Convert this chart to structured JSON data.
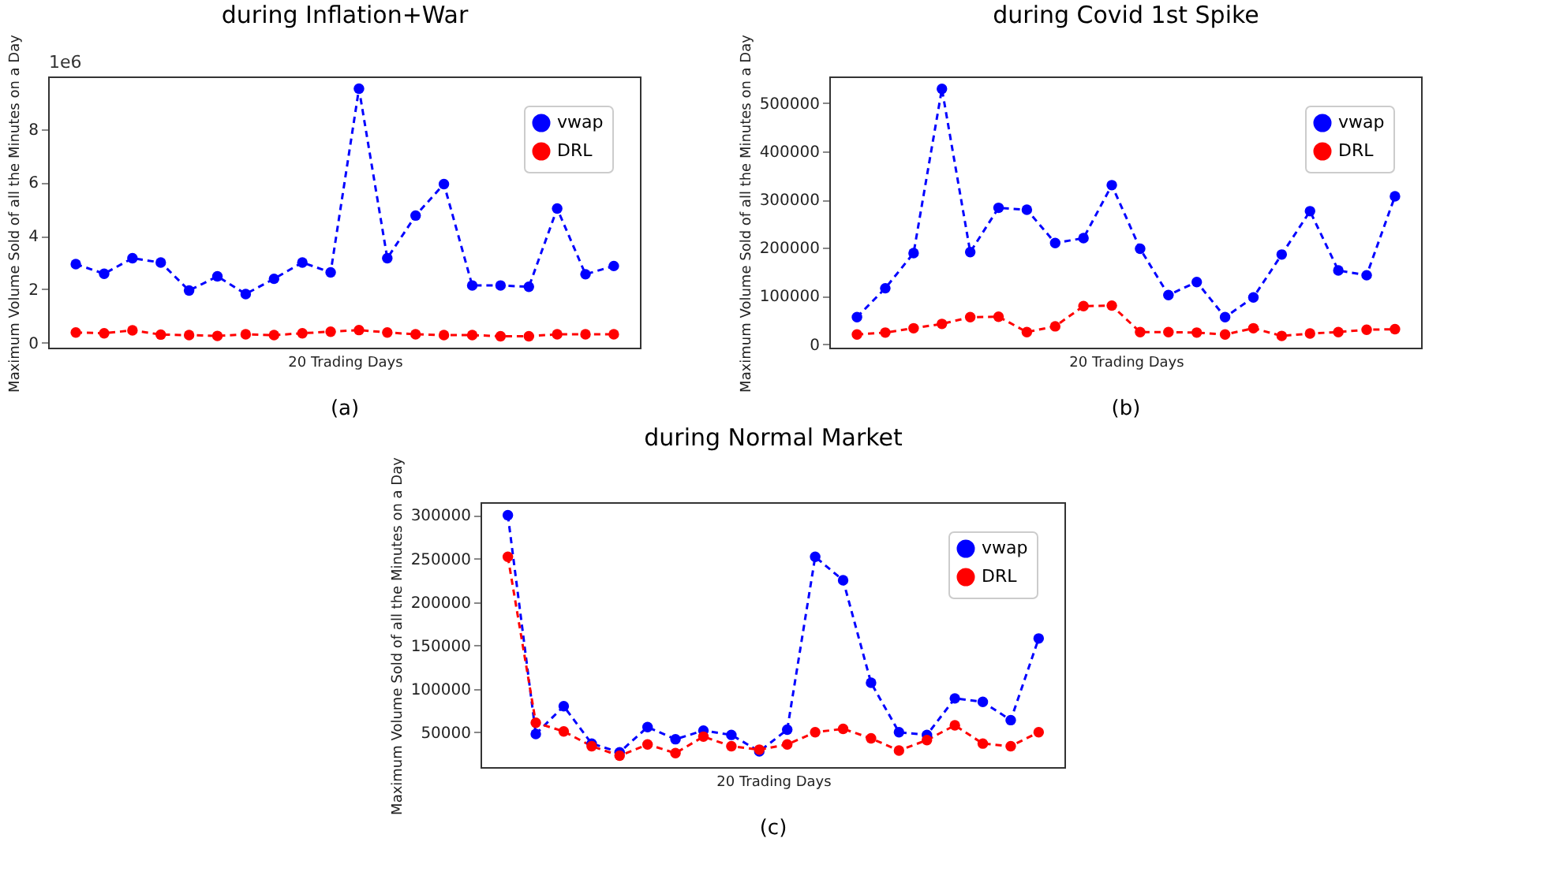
{
  "chart_data": [
    {
      "type": "line",
      "title": "during Inflation+War",
      "xlabel": "20 Trading Days",
      "ylabel": "Maximum Volume Sold of all the Minutes on a Day",
      "annotations": [
        "1e6",
        "(a)"
      ],
      "categories": [
        null,
        null,
        null,
        null,
        null,
        null,
        null,
        null,
        null,
        null,
        null,
        null,
        null,
        null,
        null,
        null,
        null,
        null,
        null,
        null
      ],
      "series": [
        {
          "name": "vwap",
          "color": "#0000ff",
          "values": [
            2.94,
            2.58,
            3.16,
            3.0,
            1.95,
            2.48,
            1.82,
            2.39,
            3.0,
            2.63,
            9.51,
            3.16,
            4.76,
            5.94,
            2.14,
            2.14,
            2.09,
            5.02,
            2.56,
            2.87
          ]
        },
        {
          "name": "DRL",
          "color": "#ff0000",
          "values": [
            0.38,
            0.35,
            0.46,
            0.3,
            0.28,
            0.25,
            0.31,
            0.28,
            0.35,
            0.41,
            0.47,
            0.38,
            0.31,
            0.28,
            0.28,
            0.24,
            0.24,
            0.31,
            0.31,
            0.31
          ]
        }
      ],
      "ylim": [
        -0.22,
        9.94
      ],
      "yticks": [
        0,
        2,
        4,
        6,
        8
      ],
      "tick_labels": "y",
      "grid": false,
      "legend": "top right",
      "marker": "circle",
      "line_style": "dashed"
    },
    {
      "type": "line",
      "title": "during Covid 1st Spike",
      "xlabel": "20 Trading Days",
      "ylabel": "Maximum Volume Sold of all the Minutes on a Day",
      "annotations": [
        "(b)"
      ],
      "categories": [
        null,
        null,
        null,
        null,
        null,
        null,
        null,
        null,
        null,
        null,
        null,
        null,
        null,
        null,
        null,
        null,
        null,
        null,
        null,
        null
      ],
      "series": [
        {
          "name": "vwap",
          "color": "#0000ff",
          "values": [
            56000,
            116000,
            189000,
            530000,
            191000,
            283000,
            279000,
            210000,
            220000,
            330000,
            198000,
            102000,
            129000,
            56000,
            97000,
            186000,
            276000,
            153000,
            143000,
            307000
          ]
        },
        {
          "name": "DRL",
          "color": "#ff0000",
          "values": [
            20000,
            24000,
            33000,
            42000,
            56000,
            57000,
            25000,
            37000,
            79000,
            80000,
            25000,
            25000,
            24000,
            20000,
            33000,
            17000,
            22000,
            25000,
            30000,
            31000
          ]
        }
      ],
      "ylim": [
        -9000,
        554000
      ],
      "yticks": [
        0,
        100000,
        200000,
        300000,
        400000,
        500000
      ],
      "tick_labels": "y",
      "grid": false,
      "legend": "top right",
      "marker": "circle",
      "line_style": "dashed"
    },
    {
      "type": "line",
      "title": "during Normal Market",
      "xlabel": "20 Trading Days",
      "ylabel": "Maximum Volume Sold of all the Minutes on a Day",
      "annotations": [
        "(c)"
      ],
      "categories": [
        null,
        null,
        null,
        null,
        null,
        null,
        null,
        null,
        null,
        null,
        null,
        null,
        null,
        null,
        null,
        null,
        null,
        null,
        null,
        null
      ],
      "series": [
        {
          "name": "vwap",
          "color": "#0000ff",
          "values": [
            300000,
            48000,
            80000,
            37000,
            27000,
            56000,
            42000,
            52000,
            47000,
            28000,
            53000,
            252000,
            225000,
            107000,
            50000,
            47000,
            89000,
            85000,
            64000,
            158000
          ]
        },
        {
          "name": "DRL",
          "color": "#ff0000",
          "values": [
            252000,
            61000,
            51000,
            34000,
            23000,
            36000,
            26000,
            45000,
            34000,
            30000,
            36000,
            50000,
            54000,
            43000,
            29000,
            41000,
            58000,
            37000,
            34000,
            50000
          ]
        }
      ],
      "ylim": [
        9000,
        314000
      ],
      "yticks": [
        50000,
        100000,
        150000,
        200000,
        250000,
        300000
      ],
      "tick_labels": "y",
      "grid": false,
      "legend": "top right",
      "marker": "circle",
      "line_style": "dashed"
    }
  ]
}
